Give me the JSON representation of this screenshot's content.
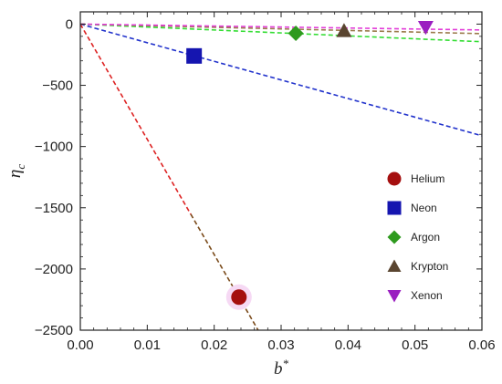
{
  "chart_data": {
    "type": "scatter",
    "xlabel": "b*",
    "ylabel": "η_c",
    "xlim": [
      0,
      0.06
    ],
    "ylim": [
      -2500,
      100
    ],
    "xticks": [
      0,
      0.01,
      0.02,
      0.03,
      0.04,
      0.05,
      0.06
    ],
    "xtick_labels": [
      "0.00",
      "0.01",
      "0.02",
      "0.03",
      "0.04",
      "0.05",
      "0.06"
    ],
    "yticks": [
      0,
      -500,
      -1000,
      -1500,
      -2000,
      -2500
    ],
    "ytick_labels": [
      "0",
      "−500",
      "−1000",
      "−1500",
      "−2000",
      "−2500"
    ],
    "legend_position": "right",
    "series": [
      {
        "name": "Helium",
        "marker": "circle",
        "color": "#a50f0f",
        "x": 0.0237,
        "y": -2230,
        "line_slope": -94100,
        "line_color": "#dd2222",
        "line_color2": "#7a4a1a"
      },
      {
        "name": "Neon",
        "marker": "square",
        "color": "#1515b0",
        "x": 0.017,
        "y": -260,
        "line_slope": -15200,
        "line_color": "#2233cc"
      },
      {
        "name": "Argon",
        "marker": "diamond",
        "color": "#2e9a1e",
        "x": 0.0322,
        "y": -75,
        "line_slope": -2400,
        "line_color": "#33dd33"
      },
      {
        "name": "Krypton",
        "marker": "triangle-up",
        "color": "#5a4530",
        "x": 0.0394,
        "y": -55,
        "line_slope": -1300,
        "line_color": "#9a7a4a"
      },
      {
        "name": "Xenon",
        "marker": "triangle-down",
        "color": "#9a1fc0",
        "x": 0.0516,
        "y": -25,
        "line_slope": -800,
        "line_color": "#e23cd8"
      }
    ]
  }
}
